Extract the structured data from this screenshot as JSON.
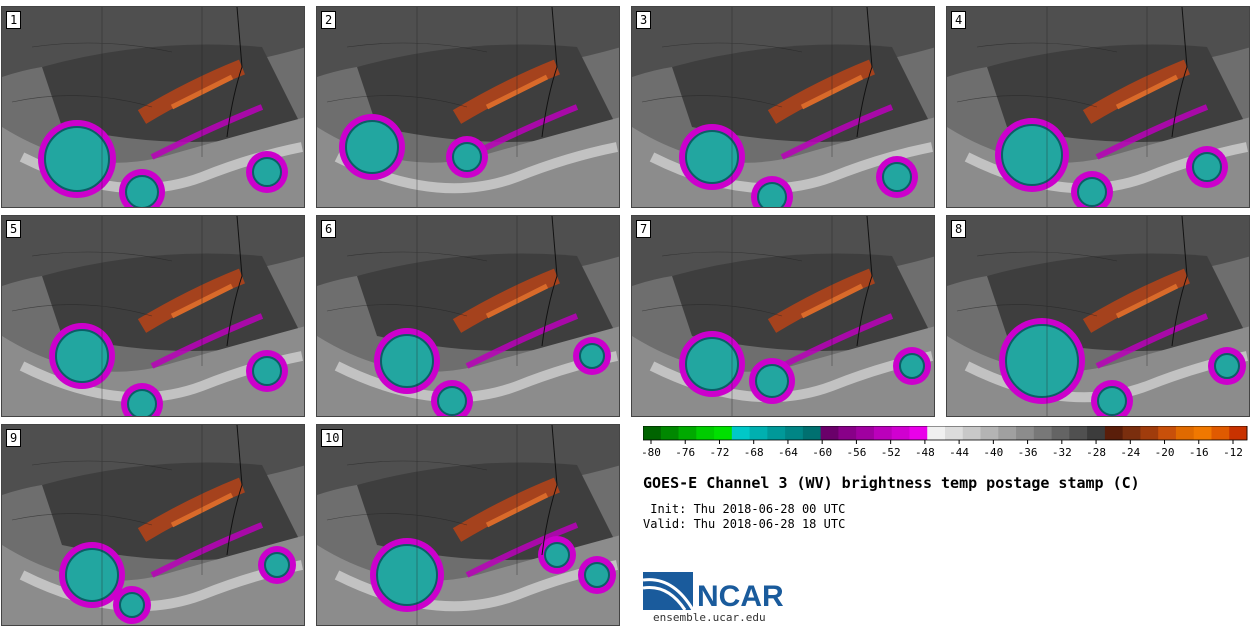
{
  "panels": [
    "1",
    "2",
    "3",
    "4",
    "5",
    "6",
    "7",
    "8",
    "9",
    "10"
  ],
  "colorbar": {
    "ticks": [
      "-80",
      "-76",
      "-72",
      "-68",
      "-64",
      "-60",
      "-56",
      "-52",
      "-48",
      "-44",
      "-40",
      "-36",
      "-32",
      "-28",
      "-24",
      "-20",
      "-16",
      "-12"
    ],
    "colors": [
      "#006400",
      "#008800",
      "#00aa00",
      "#00cc00",
      "#00e000",
      "#00c8c8",
      "#00b0b0",
      "#009999",
      "#008585",
      "#007070",
      "#6a006a",
      "#880088",
      "#a000a0",
      "#bb00bb",
      "#d000d0",
      "#ea00ea",
      "#f0f0f0",
      "#dcdcdc",
      "#c8c8c8",
      "#b4b4b4",
      "#a0a0a0",
      "#8c8c8c",
      "#787878",
      "#646464",
      "#505050",
      "#3c3c3c",
      "#5a1e0a",
      "#7a2e0e",
      "#a03c0c",
      "#c8500a",
      "#e06a00",
      "#f07800",
      "#e05a00",
      "#c83200"
    ]
  },
  "title": "GOES-E Channel 3 (WV) brightness temp postage stamp (C)",
  "init": " Init: Thu 2018-06-28 00 UTC",
  "valid": "Valid: Thu 2018-06-28 18 UTC",
  "logo": {
    "text": "NCAR",
    "url": "ensemble.ucar.edu",
    "color": "#1a5b9c"
  }
}
